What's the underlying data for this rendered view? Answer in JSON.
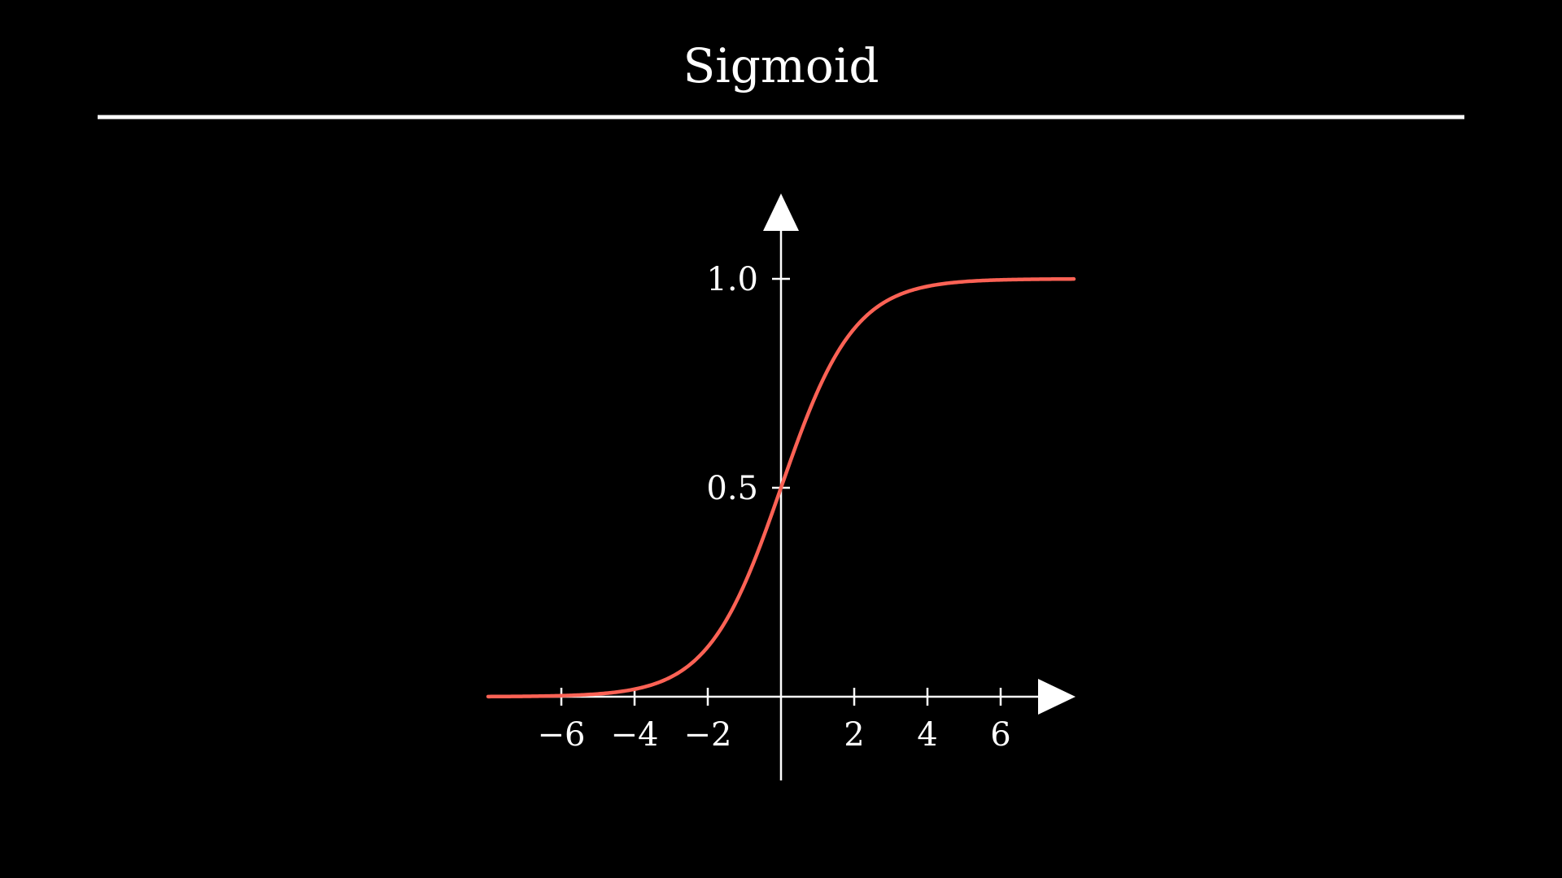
{
  "colors": {
    "background": "#000000",
    "axis": "#ffffff",
    "curve": "#fc6255"
  },
  "chart_data": {
    "type": "line",
    "title": "Sigmoid",
    "xlabel": "",
    "ylabel": "",
    "xlim": [
      -8,
      8
    ],
    "ylim": [
      0,
      1.2
    ],
    "x_ticks": [
      -6,
      -4,
      -2,
      2,
      4,
      6
    ],
    "x_tick_labels": [
      "−6",
      "−4",
      "−2",
      "2",
      "4",
      "6"
    ],
    "y_ticks": [
      0.5,
      1.0
    ],
    "y_tick_labels": [
      "0.5",
      "1.0"
    ],
    "grid": false,
    "series": [
      {
        "name": "sigmoid",
        "function": "1 / (1 + exp(-x))",
        "x_range": [
          -8,
          8
        ],
        "sample_points": [
          {
            "x": -8,
            "y": 0.0003
          },
          {
            "x": -6,
            "y": 0.0025
          },
          {
            "x": -4,
            "y": 0.018
          },
          {
            "x": -2,
            "y": 0.119
          },
          {
            "x": 0,
            "y": 0.5
          },
          {
            "x": 2,
            "y": 0.881
          },
          {
            "x": 4,
            "y": 0.982
          },
          {
            "x": 6,
            "y": 0.9975
          },
          {
            "x": 8,
            "y": 0.9997
          }
        ]
      }
    ]
  }
}
